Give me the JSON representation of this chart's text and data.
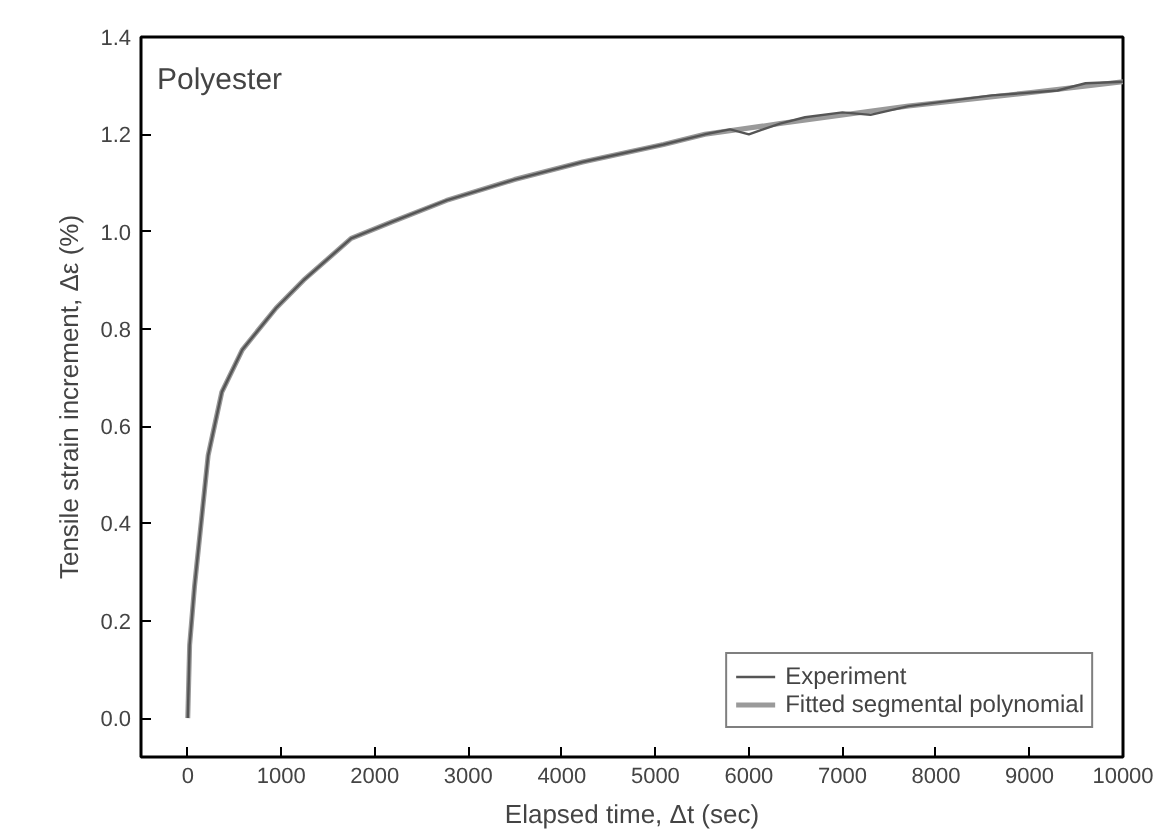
{
  "chart_data": {
    "type": "line",
    "xlabel": "Elapsed time, Δt (sec)",
    "ylabel": "Tensile strain increment, Δε (%)",
    "annotations": [
      "Polyester"
    ],
    "xlim": [
      -500,
      10000
    ],
    "ylim": [
      -0.08,
      1.4
    ],
    "xticks": [
      0,
      1000,
      2000,
      3000,
      4000,
      5000,
      6000,
      7000,
      8000,
      9000,
      10000
    ],
    "yticks": [
      {
        "value": 0,
        "label": "0.0"
      },
      {
        "value": 0.2,
        "label": "0.2"
      },
      {
        "value": 0.4,
        "label": "0.4"
      },
      {
        "value": 0.6,
        "label": "0.6"
      },
      {
        "value": 0.8,
        "label": "0.8"
      },
      {
        "value": 1.0,
        "label": "1.0"
      },
      {
        "value": 1.2,
        "label": "1.2"
      },
      {
        "value": 1.4,
        "label": "1.4"
      }
    ],
    "grid": false,
    "legend": "bottom right",
    "line_style": "solid",
    "marker": "none",
    "series": [
      {
        "name": "Experiment",
        "color": "#555555",
        "x": [
          0,
          20,
          72,
          218,
          364,
          583,
          945,
          1238,
          1747,
          2183,
          2766,
          3493,
          4221,
          5087,
          5530,
          5800,
          6000,
          6332,
          6600,
          7000,
          7300,
          7707,
          8000,
          8600,
          9017,
          9300,
          9600,
          10000
        ],
        "values": [
          0,
          0.15,
          0.27,
          0.54,
          0.67,
          0.757,
          0.843,
          0.9,
          0.986,
          1.02,
          1.064,
          1.107,
          1.143,
          1.179,
          1.2,
          1.21,
          1.2,
          1.222,
          1.235,
          1.245,
          1.24,
          1.258,
          1.265,
          1.28,
          1.286,
          1.29,
          1.305,
          1.308
        ]
      },
      {
        "name": "Fitted segmental polynomial",
        "color": "#9a9a9a",
        "x": [
          0,
          20,
          72,
          218,
          364,
          583,
          945,
          1238,
          1747,
          2183,
          2766,
          3493,
          4221,
          5087,
          5530,
          6332,
          7707,
          9017,
          10000
        ],
        "values": [
          0,
          0.15,
          0.27,
          0.54,
          0.67,
          0.757,
          0.843,
          0.9,
          0.986,
          1.02,
          1.064,
          1.107,
          1.143,
          1.179,
          1.2,
          1.222,
          1.258,
          1.286,
          1.308
        ]
      }
    ]
  }
}
